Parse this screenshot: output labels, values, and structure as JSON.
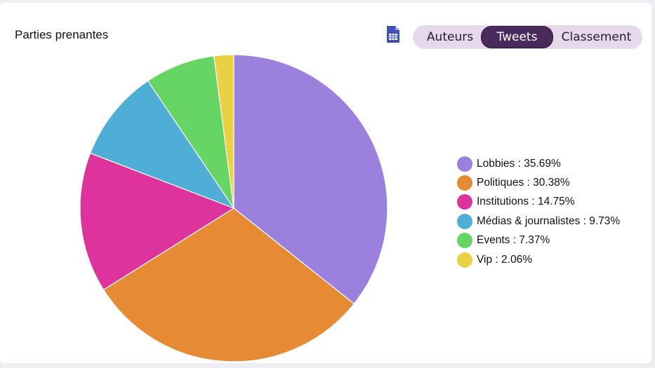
{
  "header": {
    "title": "Parties prenantes",
    "export_icon": "spreadsheet-icon"
  },
  "tabs": [
    {
      "label": "Auteurs",
      "active": false
    },
    {
      "label": "Tweets",
      "active": true
    },
    {
      "label": "Classement",
      "active": false
    }
  ],
  "colors": {
    "tab_active_bg": "#4a2a5b",
    "tab_bar_bg": "#e6d9ec",
    "icon": "#3f51b5"
  },
  "chart_data": {
    "type": "pie",
    "title": "Parties prenantes",
    "legend_position": "right",
    "slices": [
      {
        "label": "Lobbies",
        "value": 35.69,
        "color": "#9b80de",
        "legend_text": "Lobbies : 35.69%"
      },
      {
        "label": "Politiques",
        "value": 30.38,
        "color": "#e68b33",
        "legend_text": "Politiques : 30.38%"
      },
      {
        "label": "Institutions",
        "value": 14.75,
        "color": "#dd339c",
        "legend_text": "Institutions : 14.75%"
      },
      {
        "label": "Médias & journalistes",
        "value": 9.73,
        "color": "#4faed6",
        "legend_text": "Médias & journalistes : 9.73%"
      },
      {
        "label": "Events",
        "value": 7.37,
        "color": "#66d563",
        "legend_text": "Events : 7.37%"
      },
      {
        "label": "Vip",
        "value": 2.06,
        "color": "#ead043",
        "legend_text": "Vip : 2.06%"
      }
    ]
  }
}
